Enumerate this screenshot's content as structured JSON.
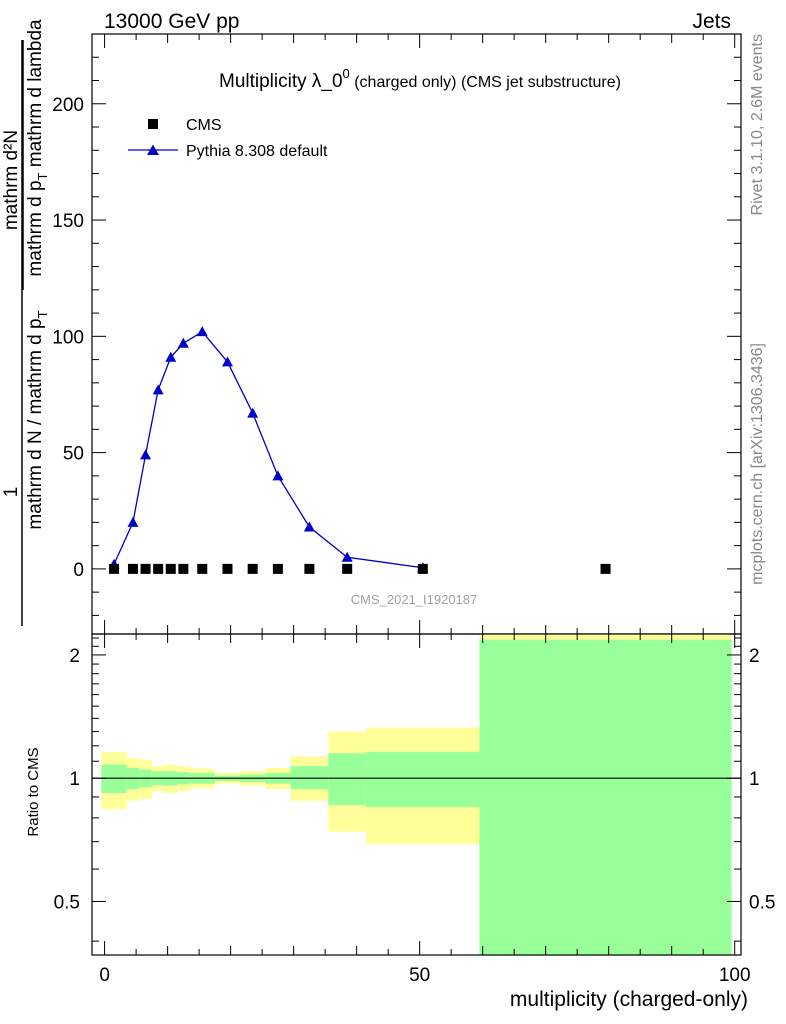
{
  "header": {
    "left": "13000 GeV pp",
    "right": "Jets"
  },
  "side_labels": {
    "rivet": "Rivet 3.1.10,  2.6M events",
    "mcplots": "mcplots.cern.ch [arXiv:1306.3436]"
  },
  "colors": {
    "cms": "#000000",
    "pythia": "#0000cc",
    "band_outer": "#ffff99",
    "band_inner": "#99ff99",
    "analysis_label": "#a0a0a0"
  },
  "chart_data": [
    {
      "type": "scatter",
      "title_main": "Multiplicity λ_0",
      "title_sup": "0",
      "title_sub": " (charged only) (CMS jet substructure)",
      "ylabel_top": "mathrm d²N",
      "ylabel_bottom": "mathrm d p",
      "ylabel_bottom_sub": "T",
      "ylabel_bottom_rest": " mathrm d lambda",
      "ylabel_left_num": "1",
      "ylabel_left_den": "mathrm d N / mathrm d p",
      "ylabel_left_den_sub": "T",
      "ylim": [
        -28,
        230
      ],
      "xlim": [
        -2,
        101
      ],
      "yticks": [
        0,
        50,
        100,
        150,
        200
      ],
      "ytick_labels": [
        "0",
        "50",
        "100",
        "150",
        "200"
      ],
      "analysis_label": "CMS_2021_I1920187",
      "legend": {
        "position": "top-left",
        "entries": [
          "CMS",
          "Pythia 8.308 default"
        ]
      },
      "series": [
        {
          "name": "CMS",
          "marker": "square",
          "x": [
            1.5,
            4.5,
            6.5,
            8.5,
            10.5,
            12.5,
            15.5,
            19.5,
            23.5,
            27.5,
            32.5,
            38.5,
            50.5,
            79.5
          ],
          "y": [
            0,
            0,
            0,
            0,
            0,
            0,
            0,
            0,
            0,
            0,
            0,
            0,
            0,
            0
          ]
        },
        {
          "name": "Pythia 8.308 default",
          "marker": "triangle",
          "x": [
            1.5,
            4.5,
            6.5,
            8.5,
            10.5,
            12.5,
            15.5,
            19.5,
            23.5,
            27.5,
            32.5,
            38.5,
            50.5
          ],
          "y": [
            2,
            20,
            49,
            77,
            91,
            97,
            102,
            89,
            67,
            40,
            18,
            5,
            0.5
          ]
        }
      ]
    },
    {
      "type": "area",
      "ylabel": "Ratio to CMS",
      "xlabel": "multiplicity (charged-only)",
      "xlim": [
        -2,
        101
      ],
      "ylim": [
        0.37,
        2.25
      ],
      "xticks": [
        0,
        50,
        100
      ],
      "xtick_labels": [
        "0",
        "50",
        "100"
      ],
      "yticks": [
        0.5,
        1,
        2
      ],
      "ytick_labels": [
        "0.5",
        "1",
        "2"
      ],
      "reference_line": 1,
      "bins": [
        {
          "x0": -0.5,
          "x1": 3.5,
          "inner_lo": 0.92,
          "inner_hi": 1.08,
          "outer_lo": 0.84,
          "outer_hi": 1.16
        },
        {
          "x0": 3.5,
          "x1": 5.5,
          "inner_lo": 0.94,
          "inner_hi": 1.06,
          "outer_lo": 0.88,
          "outer_hi": 1.12
        },
        {
          "x0": 5.5,
          "x1": 7.5,
          "inner_lo": 0.95,
          "inner_hi": 1.05,
          "outer_lo": 0.89,
          "outer_hi": 1.11
        },
        {
          "x0": 7.5,
          "x1": 9.5,
          "inner_lo": 0.96,
          "inner_hi": 1.04,
          "outer_lo": 0.93,
          "outer_hi": 1.07
        },
        {
          "x0": 9.5,
          "x1": 11.5,
          "inner_lo": 0.96,
          "inner_hi": 1.04,
          "outer_lo": 0.92,
          "outer_hi": 1.08
        },
        {
          "x0": 11.5,
          "x1": 13.5,
          "inner_lo": 0.965,
          "inner_hi": 1.035,
          "outer_lo": 0.93,
          "outer_hi": 1.07
        },
        {
          "x0": 13.5,
          "x1": 17.5,
          "inner_lo": 0.97,
          "inner_hi": 1.03,
          "outer_lo": 0.945,
          "outer_hi": 1.055
        },
        {
          "x0": 17.5,
          "x1": 21.5,
          "inner_lo": 0.985,
          "inner_hi": 1.015,
          "outer_lo": 0.97,
          "outer_hi": 1.03
        },
        {
          "x0": 21.5,
          "x1": 25.5,
          "inner_lo": 0.98,
          "inner_hi": 1.02,
          "outer_lo": 0.96,
          "outer_hi": 1.04
        },
        {
          "x0": 25.5,
          "x1": 29.5,
          "inner_lo": 0.97,
          "inner_hi": 1.03,
          "outer_lo": 0.94,
          "outer_hi": 1.06
        },
        {
          "x0": 29.5,
          "x1": 35.5,
          "inner_lo": 0.94,
          "inner_hi": 1.07,
          "outer_lo": 0.88,
          "outer_hi": 1.13
        },
        {
          "x0": 35.5,
          "x1": 41.5,
          "inner_lo": 0.86,
          "inner_hi": 1.15,
          "outer_lo": 0.74,
          "outer_hi": 1.3
        },
        {
          "x0": 41.5,
          "x1": 59.5,
          "inner_lo": 0.85,
          "inner_hi": 1.16,
          "outer_lo": 0.69,
          "outer_hi": 1.33
        },
        {
          "x0": 59.5,
          "x1": 99.5,
          "inner_lo": 0.37,
          "inner_hi": 2.18,
          "outer_lo": 0.37,
          "outer_hi": 2.25
        }
      ]
    }
  ]
}
